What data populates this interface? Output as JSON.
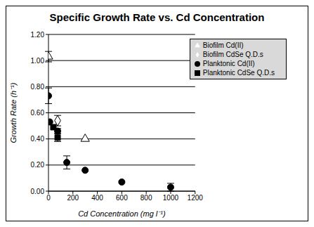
{
  "chart_data": {
    "type": "scatter",
    "title": "Specific Growth Rate vs. Cd Concentration",
    "x_label": "Cd Concentration (mg l⁻¹)",
    "y_label": "Growth Rate (h⁻¹)",
    "xlim": [
      0,
      1200
    ],
    "xticks": [
      0,
      200,
      400,
      600,
      800,
      1000,
      1200
    ],
    "ylim": [
      0,
      1.2
    ],
    "yticks": [
      {
        "value": 0,
        "label": "0.00"
      },
      {
        "value": 0.2,
        "label": "0.20"
      },
      {
        "value": 0.4,
        "label": "0.40"
      },
      {
        "value": 0.6,
        "label": "0.60"
      },
      {
        "value": 0.8,
        "label": "0.80"
      },
      {
        "value": 1.0,
        "label": "1.00"
      },
      {
        "value": 1.2,
        "label": "1.20"
      }
    ],
    "grid": true,
    "legend": "upper right",
    "series": [
      {
        "name": "Planktonic Cd(II)",
        "color": "#000000",
        "marker": "circle",
        "x": [
          0,
          10,
          75,
          150,
          300,
          600,
          1000
        ],
        "values": [
          0.73,
          0.53,
          0.46,
          0.22,
          0.16,
          0.07,
          0.03
        ],
        "errors": [
          0.06,
          null,
          0.02,
          0.05,
          null,
          null,
          0.03
        ]
      },
      {
        "name": "Planktonic CdSe Q.D.s",
        "color": "#000000",
        "marker": "square",
        "x": [
          40,
          75
        ],
        "values": [
          0.49,
          0.41
        ],
        "errors": [
          null,
          0.03
        ]
      },
      {
        "name": "Biofilm Cd(II)",
        "color": "#000000",
        "marker": "triangle-open",
        "x": [
          0,
          300
        ],
        "values": [
          1.03,
          0.4
        ],
        "errors": [
          0.04,
          null
        ]
      },
      {
        "name": "Biofilm CdSe Q.D.s",
        "color": "#000000",
        "marker": "diamond-open",
        "x": [
          75
        ],
        "values": [
          0.54
        ],
        "errors": [
          0.04
        ]
      }
    ]
  }
}
